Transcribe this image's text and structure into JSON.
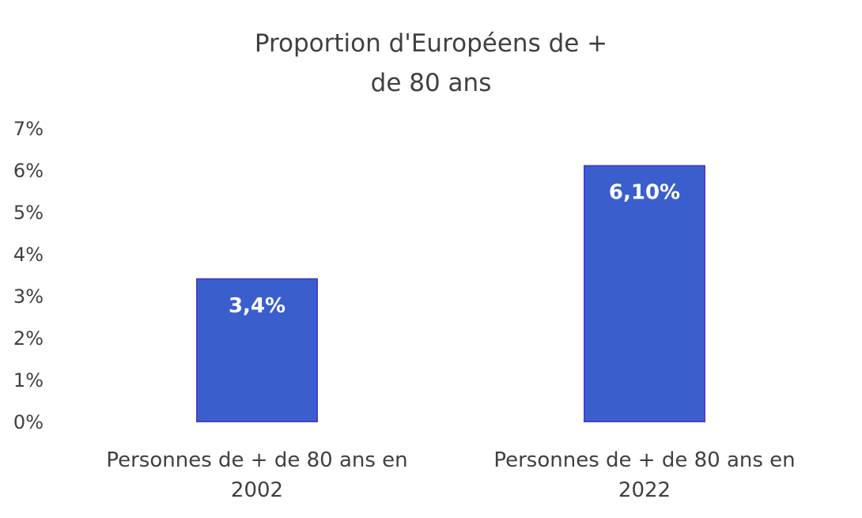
{
  "chart_data": {
    "type": "bar",
    "title_lines": [
      "Proportion d'Européens de +",
      "de 80 ans"
    ],
    "categories": [
      [
        "Personnes de + de 80 ans en",
        "2002"
      ],
      [
        "Personnes de + de 80 ans en",
        "2022"
      ]
    ],
    "values": [
      3.4,
      6.1
    ],
    "data_labels": [
      "3,4%",
      "6,10%"
    ],
    "y_ticks": [
      "0%",
      "1%",
      "2%",
      "3%",
      "4%",
      "5%",
      "6%",
      "7%"
    ],
    "ylim": [
      0,
      7
    ],
    "grid": false,
    "legend": "none",
    "colors": {
      "bar": "#3a5fcd",
      "bar_edge": "#4b3fc9",
      "text": "#404040",
      "label": "#ffffff"
    }
  }
}
